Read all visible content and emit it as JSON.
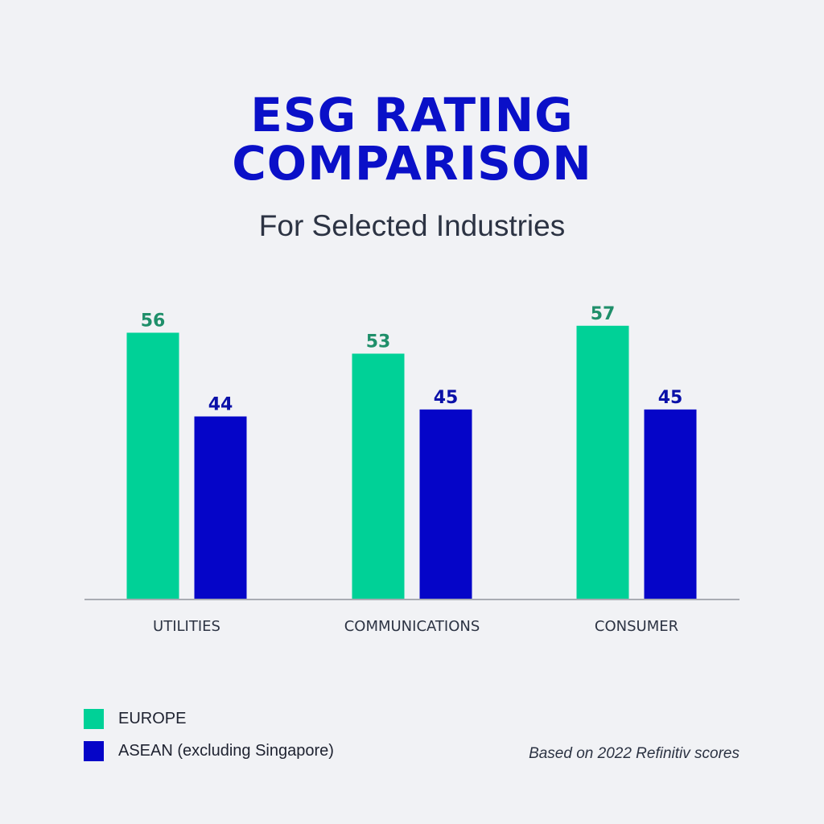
{
  "chart_data": {
    "type": "bar",
    "title": "ESG RATING COMPARISON",
    "title_lines": [
      "ESG RATING",
      "COMPARISON"
    ],
    "subtitle": "For Selected Industries",
    "categories": [
      "UTILITIES",
      "COMMUNICATIONS",
      "CONSUMER"
    ],
    "series": [
      {
        "name": "EUROPE",
        "color": "#00d197",
        "label_color": "#1f8f6a",
        "values": [
          56,
          53,
          57
        ]
      },
      {
        "name": "ASEAN (excluding Singapore)",
        "color": "#0505c8",
        "label_color": "#0a10a8",
        "values": [
          44,
          45,
          45
        ]
      }
    ],
    "xlabel": "",
    "ylabel": "",
    "grid": false,
    "legend_position": "bottom-left",
    "annotation": "Based on 2022 Refinitiv scores"
  }
}
